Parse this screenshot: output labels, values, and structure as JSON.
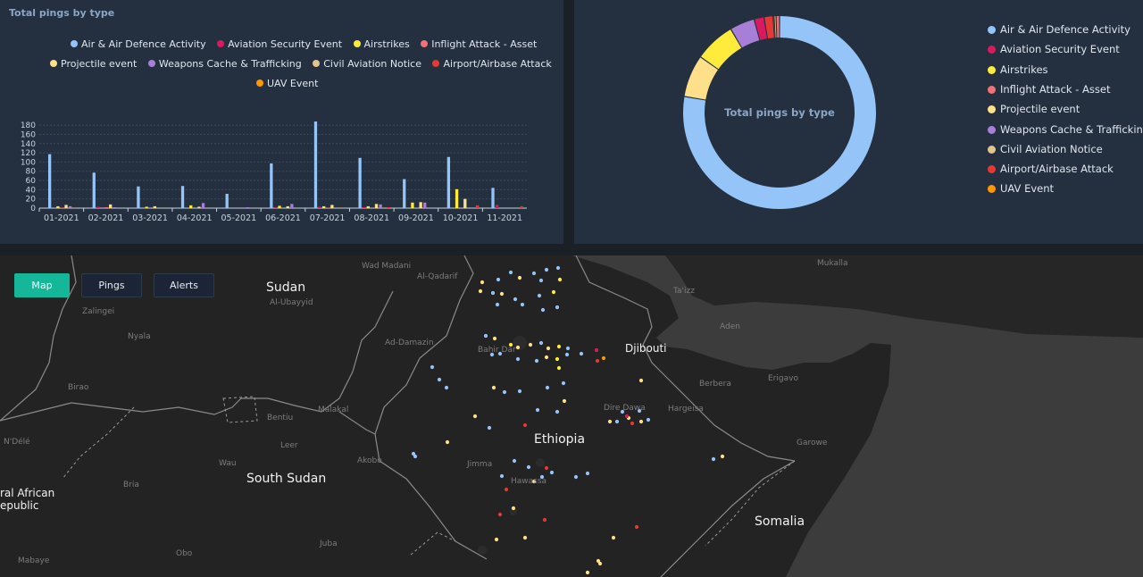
{
  "bar_panel": {
    "title": "Total pings by type",
    "legend_rows": [
      [
        {
          "label": "Air & Air Defence Activity",
          "color": "#95c4f9"
        },
        {
          "label": "Aviation Security Event",
          "color": "#d81b60"
        },
        {
          "label": "Airstrikes",
          "color": "#ffeb3b"
        },
        {
          "label": "Inflight Attack - Asset",
          "color": "#f07178"
        }
      ],
      [
        {
          "label": "Projectile event",
          "color": "#ffe08a"
        },
        {
          "label": "Weapons Cache & Trafficking",
          "color": "#a77fd6"
        },
        {
          "label": "Civil Aviation Notice",
          "color": "#e3c58c"
        },
        {
          "label": "Airport/Airbase Attack",
          "color": "#e53935"
        }
      ],
      [
        {
          "label": "UAV Event",
          "color": "#ff9800"
        }
      ]
    ]
  },
  "chart_data": [
    {
      "type": "bar",
      "title": "Total pings by type",
      "categories": [
        "01-2021",
        "02-2021",
        "03-2021",
        "04-2021",
        "05-2021",
        "06-2021",
        "07-2021",
        "08-2021",
        "09-2021",
        "10-2021",
        "11-2021"
      ],
      "ylim": [
        0,
        190
      ],
      "yticks": [
        "0",
        "20",
        "40",
        "60",
        "80",
        "100",
        "120",
        "140",
        "160",
        "180"
      ],
      "series": [
        {
          "name": "Air & Air Defence Activity",
          "color": "#95c4f9",
          "values": [
            117,
            77,
            47,
            48,
            31,
            97,
            188,
            109,
            63,
            111,
            44
          ]
        },
        {
          "name": "Aviation Security Event",
          "color": "#d81b60",
          "values": [
            0,
            3,
            0,
            0,
            0,
            2,
            3,
            2,
            0,
            0,
            7
          ]
        },
        {
          "name": "Airstrikes",
          "color": "#ffeb3b",
          "values": [
            4,
            0,
            3,
            6,
            0,
            5,
            4,
            4,
            12,
            41,
            0
          ]
        },
        {
          "name": "Inflight Attack - Asset",
          "color": "#f07178",
          "values": [
            1,
            2,
            0,
            0,
            0,
            0,
            1,
            0,
            0,
            0,
            0
          ]
        },
        {
          "name": "Projectile event",
          "color": "#ffe08a",
          "values": [
            7,
            8,
            4,
            3,
            0,
            4,
            7,
            9,
            13,
            20,
            0
          ]
        },
        {
          "name": "Weapons Cache & Trafficking",
          "color": "#a77fd6",
          "values": [
            4,
            2,
            0,
            11,
            2,
            9,
            0,
            8,
            12,
            0,
            0
          ]
        },
        {
          "name": "Civil Aviation Notice",
          "color": "#e3c58c",
          "values": [
            1,
            0,
            1,
            0,
            0,
            0,
            1,
            1,
            0,
            0,
            0
          ]
        },
        {
          "name": "Airport/Airbase Attack",
          "color": "#e53935",
          "values": [
            0,
            0,
            0,
            0,
            0,
            0,
            0,
            2,
            0,
            6,
            4
          ]
        },
        {
          "name": "UAV Event",
          "color": "#ff9800",
          "values": [
            0,
            0,
            0,
            0,
            0,
            0,
            0,
            0,
            0,
            0,
            0
          ]
        }
      ]
    },
    {
      "type": "pie",
      "center_label": "Total pings by type",
      "labels": [
        "Air & Air Defence Activity",
        "Aviation Security Event",
        "Airstrikes",
        "Inflight Attack - Asset",
        "Projectile event",
        "Weapons Cache & Trafficking",
        "Civil Aviation Notice",
        "Airport/Airbase Attack",
        "UAV Event"
      ],
      "colors": [
        "#95c4f9",
        "#d81b60",
        "#ffeb3b",
        "#f07178",
        "#ffe08a",
        "#a77fd6",
        "#e3c58c",
        "#e53935",
        "#ff9800"
      ],
      "render_order": [
        0,
        4,
        2,
        5,
        1,
        7,
        8,
        6,
        3
      ],
      "values": [
        932,
        20,
        82,
        7,
        85,
        50,
        4,
        18,
        2
      ]
    }
  ],
  "map": {
    "buttons": [
      {
        "label": "Map",
        "active": true
      },
      {
        "label": "Pings",
        "active": false
      },
      {
        "label": "Alerts",
        "active": false
      }
    ],
    "countries": [
      "Sudan",
      "South Sudan",
      "Ethiopia",
      "Somalia",
      "Djibouti",
      "ral African",
      "epublic"
    ],
    "places": [
      "Wad Madani",
      "Al-Qadarif",
      "Al-Ubayyid",
      "Zalingei",
      "Nyala",
      "Ad-Damazin",
      "Bahir Dar",
      "Ta'izz",
      "Aden",
      "Mukalla",
      "Birao",
      "Bentiu",
      "Malakal",
      "Leer",
      "Wau",
      "Akobo",
      "Jimma",
      "Hawassa",
      "Dire Dawa",
      "Hargeisa",
      "Berbera",
      "Erigavo",
      "Garowe",
      "N'Délé",
      "Bria",
      "Obo",
      "Juba",
      "Mabaye"
    ],
    "icons": [
      "map-point-icon"
    ]
  }
}
